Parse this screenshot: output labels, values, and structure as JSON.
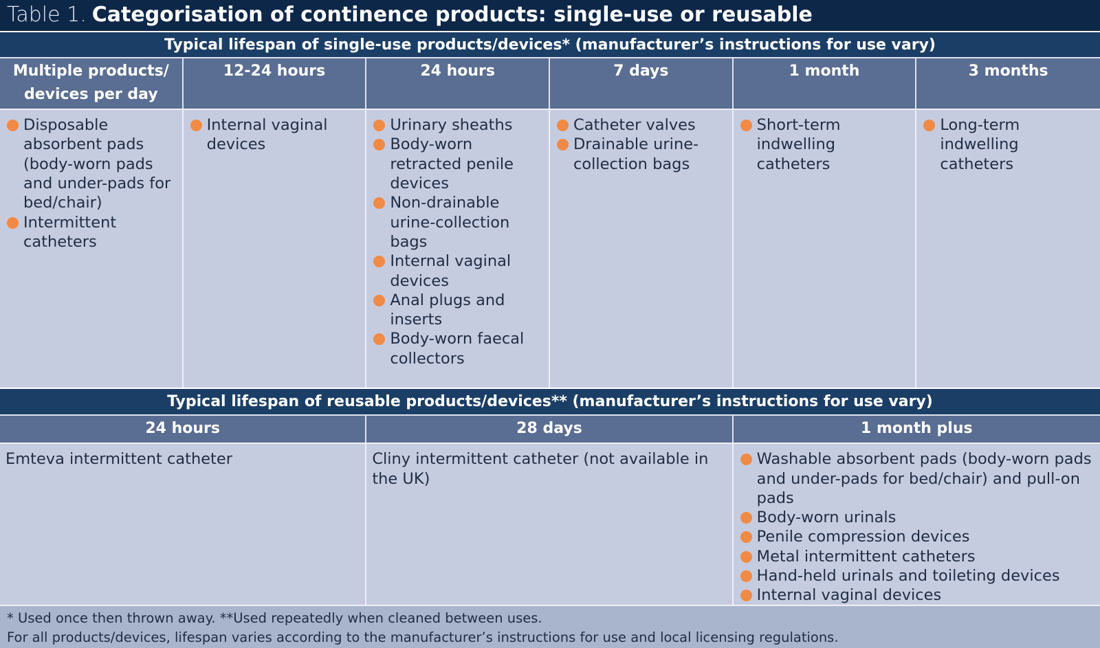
{
  "title": {
    "label": "Table 1.",
    "text": "Categorisation of continence products: single-use or reusable"
  },
  "single_use": {
    "heading": "Typical lifespan of single-use products/devices* (manufacturer’s instructions for use vary)",
    "columns": [
      {
        "header": "Multiple products/ devices per day",
        "items": [
          "Disposable absorbent pads (body-worn pads and under-pads for bed/chair)",
          "Intermittent catheters"
        ]
      },
      {
        "header": "12-24 hours",
        "items": [
          "Internal vaginal devices"
        ]
      },
      {
        "header": "24 hours",
        "items": [
          "Urinary sheaths",
          "Body-worn retracted penile devices",
          "Non-drainable urine-collection bags",
          "Internal vaginal devices",
          "Anal plugs and inserts",
          "Body-worn faecal collectors"
        ]
      },
      {
        "header": "7 days",
        "items": [
          "Catheter valves",
          "Drainable urine-collection bags"
        ]
      },
      {
        "header": "1 month",
        "items": [
          "Short-term indwelling catheters"
        ]
      },
      {
        "header": "3 months",
        "items": [
          "Long-term indwelling catheters"
        ]
      }
    ]
  },
  "reusable": {
    "heading": "Typical lifespan of reusable products/devices** (manufacturer’s instructions for use vary)",
    "columns": [
      {
        "header": "24 hours",
        "text": "Emteva intermittent catheter"
      },
      {
        "header": "28 days",
        "text": "Cliny intermittent catheter (not available in the UK)"
      },
      {
        "header": "1 month plus",
        "items": [
          "Washable absorbent pads (body-worn pads and under-pads for bed/chair) and pull-on pads",
          "Body-worn urinals",
          "Penile compression devices",
          "Metal intermittent catheters",
          "Hand-held urinals and toileting devices",
          "Internal vaginal devices"
        ]
      }
    ]
  },
  "footnotes": [
    "* Used once then thrown away. **Used repeatedly when cleaned between uses.",
    "For all products/devices, lifespan varies according to the manufacturer’s instructions for use and local licensing regulations."
  ]
}
